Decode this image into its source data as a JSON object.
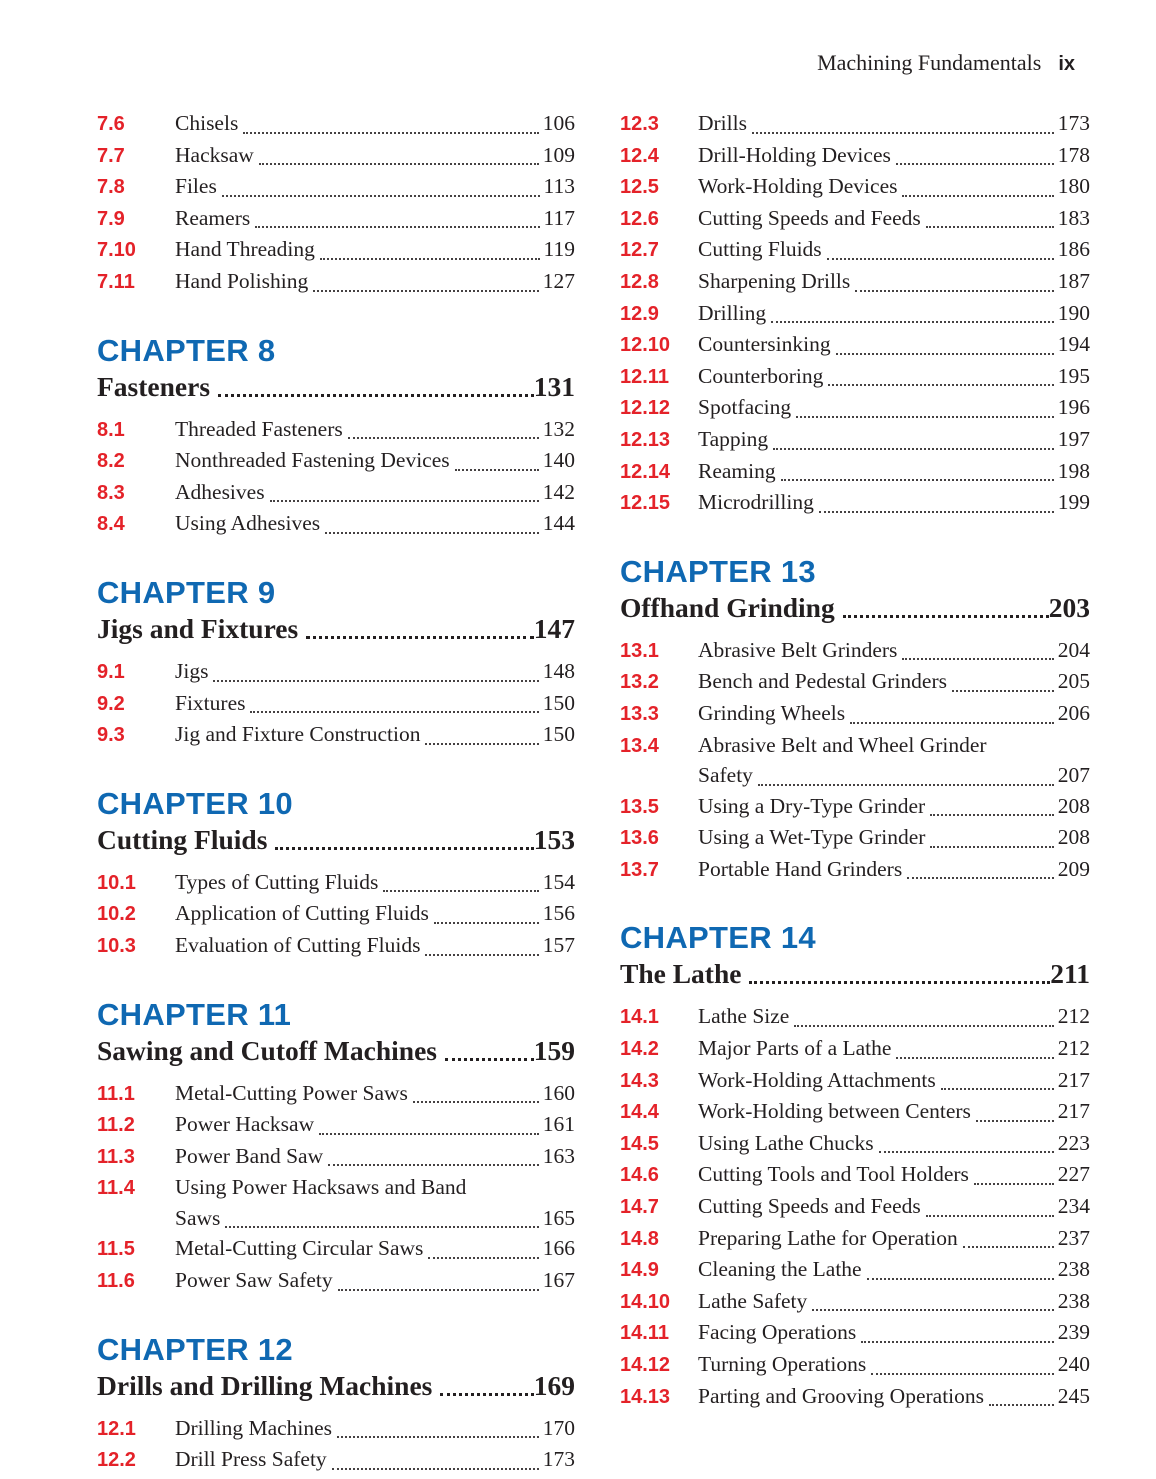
{
  "header": {
    "book_title": "Machining Fundamentals",
    "folio": "ix"
  },
  "colors": {
    "chapter_blue": "#0f68b2",
    "section_red": "#e42229",
    "ink": "#231f20"
  },
  "columns": [
    {
      "side": "left",
      "blocks": [
        {
          "type": "sections",
          "sections": [
            {
              "num": "7.6",
              "title": "Chisels",
              "page": "106"
            },
            {
              "num": "7.7",
              "title": "Hacksaw",
              "page": "109"
            },
            {
              "num": "7.8",
              "title": "Files",
              "page": "113"
            },
            {
              "num": "7.9",
              "title": "Reamers",
              "page": "117"
            },
            {
              "num": "7.10",
              "title": "Hand Threading",
              "page": "119"
            },
            {
              "num": "7.11",
              "title": "Hand Polishing",
              "page": "127"
            }
          ]
        },
        {
          "type": "chapter",
          "label": "CHAPTER 8",
          "title": "Fasteners",
          "page": "131",
          "sections": [
            {
              "num": "8.1",
              "title": "Threaded Fasteners",
              "page": "132"
            },
            {
              "num": "8.2",
              "title": "Nonthreaded Fastening Devices",
              "page": "140"
            },
            {
              "num": "8.3",
              "title": "Adhesives",
              "page": "142"
            },
            {
              "num": "8.4",
              "title": "Using Adhesives",
              "page": "144"
            }
          ]
        },
        {
          "type": "chapter",
          "label": "CHAPTER 9",
          "title": "Jigs and Fixtures",
          "page": "147",
          "sections": [
            {
              "num": "9.1",
              "title": "Jigs",
              "page": "148"
            },
            {
              "num": "9.2",
              "title": "Fixtures",
              "page": "150"
            },
            {
              "num": "9.3",
              "title": "Jig and Fixture Construction",
              "page": "150"
            }
          ]
        },
        {
          "type": "chapter",
          "label": "CHAPTER 10",
          "title": "Cutting Fluids",
          "page": "153",
          "sections": [
            {
              "num": "10.1",
              "title": "Types of Cutting Fluids",
              "page": "154"
            },
            {
              "num": "10.2",
              "title": "Application of Cutting Fluids",
              "page": "156"
            },
            {
              "num": "10.3",
              "title": "Evaluation of Cutting Fluids",
              "page": "157"
            }
          ]
        },
        {
          "type": "chapter",
          "label": "CHAPTER 11",
          "title": "Sawing and Cutoff Machines",
          "page": "159",
          "sections": [
            {
              "num": "11.1",
              "title": "Metal-Cutting Power Saws",
              "page": "160"
            },
            {
              "num": "11.2",
              "title": "Power Hacksaw",
              "page": "161"
            },
            {
              "num": "11.3",
              "title": "Power Band Saw",
              "page": "163"
            },
            {
              "num": "11.4",
              "title": "Using Power Hacksaws and Band",
              "title2": "Saws",
              "page": "165"
            },
            {
              "num": "11.5",
              "title": "Metal-Cutting Circular Saws",
              "page": "166"
            },
            {
              "num": "11.6",
              "title": "Power Saw Safety",
              "page": "167"
            }
          ]
        },
        {
          "type": "chapter",
          "label": "CHAPTER 12",
          "title": "Drills and Drilling Machines",
          "page": "169",
          "sections": [
            {
              "num": "12.1",
              "title": "Drilling Machines",
              "page": "170"
            },
            {
              "num": "12.2",
              "title": "Drill Press Safety",
              "page": "173"
            }
          ]
        }
      ]
    },
    {
      "side": "right",
      "blocks": [
        {
          "type": "sections",
          "sections": [
            {
              "num": "12.3",
              "title": "Drills",
              "page": "173"
            },
            {
              "num": "12.4",
              "title": "Drill-Holding Devices",
              "page": "178"
            },
            {
              "num": "12.5",
              "title": "Work-Holding Devices",
              "page": "180"
            },
            {
              "num": "12.6",
              "title": "Cutting Speeds and Feeds",
              "page": "183"
            },
            {
              "num": "12.7",
              "title": "Cutting Fluids",
              "page": "186"
            },
            {
              "num": "12.8",
              "title": "Sharpening Drills",
              "page": "187"
            },
            {
              "num": "12.9",
              "title": "Drilling",
              "page": "190"
            },
            {
              "num": "12.10",
              "title": "Countersinking",
              "page": "194"
            },
            {
              "num": "12.11",
              "title": "Counterboring",
              "page": "195"
            },
            {
              "num": "12.12",
              "title": "Spotfacing",
              "page": "196"
            },
            {
              "num": "12.13",
              "title": "Tapping",
              "page": "197"
            },
            {
              "num": "12.14",
              "title": "Reaming",
              "page": "198"
            },
            {
              "num": "12.15",
              "title": "Microdrilling",
              "page": "199"
            }
          ]
        },
        {
          "type": "chapter",
          "label": "CHAPTER 13",
          "title": "Offhand Grinding",
          "page": "203",
          "sections": [
            {
              "num": "13.1",
              "title": "Abrasive Belt Grinders",
              "page": "204"
            },
            {
              "num": "13.2",
              "title": "Bench and Pedestal Grinders",
              "page": "205"
            },
            {
              "num": "13.3",
              "title": "Grinding Wheels",
              "page": "206"
            },
            {
              "num": "13.4",
              "title": "Abrasive Belt and Wheel Grinder",
              "title2": "Safety",
              "page": "207"
            },
            {
              "num": "13.5",
              "title": "Using a Dry-Type Grinder",
              "page": "208"
            },
            {
              "num": "13.6",
              "title": "Using a Wet-Type Grinder",
              "page": "208"
            },
            {
              "num": "13.7",
              "title": "Portable Hand Grinders",
              "page": "209"
            }
          ]
        },
        {
          "type": "chapter",
          "label": "CHAPTER 14",
          "title": "The Lathe",
          "page": "211",
          "sections": [
            {
              "num": "14.1",
              "title": "Lathe Size",
              "page": "212"
            },
            {
              "num": "14.2",
              "title": "Major Parts of a Lathe",
              "page": "212"
            },
            {
              "num": "14.3",
              "title": "Work-Holding Attachments",
              "page": "217"
            },
            {
              "num": "14.4",
              "title": "Work-Holding between Centers",
              "page": "217"
            },
            {
              "num": "14.5",
              "title": "Using Lathe Chucks",
              "page": "223"
            },
            {
              "num": "14.6",
              "title": "Cutting Tools and Tool Holders",
              "page": "227"
            },
            {
              "num": "14.7",
              "title": "Cutting Speeds and Feeds",
              "page": "234"
            },
            {
              "num": "14.8",
              "title": "Preparing Lathe for Operation",
              "page": "237"
            },
            {
              "num": "14.9",
              "title": "Cleaning the Lathe",
              "page": "238"
            },
            {
              "num": "14.10",
              "title": "Lathe Safety",
              "page": "238"
            },
            {
              "num": "14.11",
              "title": "Facing Operations",
              "page": "239"
            },
            {
              "num": "14.12",
              "title": "Turning Operations",
              "page": "240"
            },
            {
              "num": "14.13",
              "title": "Parting and Grooving Operations",
              "page": "245"
            }
          ]
        }
      ]
    }
  ]
}
